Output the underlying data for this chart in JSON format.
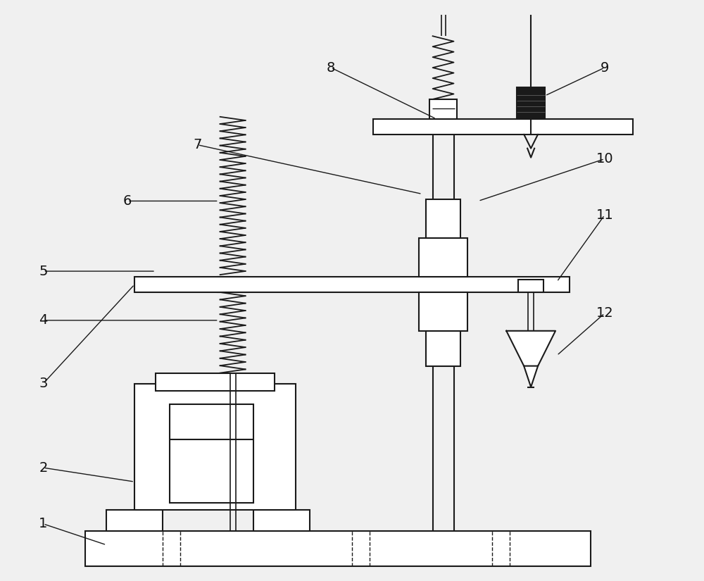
{
  "bg_color": "#f0f0f0",
  "line_color": "#1a1a1a",
  "line_width": 1.5,
  "fig_width": 10.0,
  "fig_height": 8.25
}
